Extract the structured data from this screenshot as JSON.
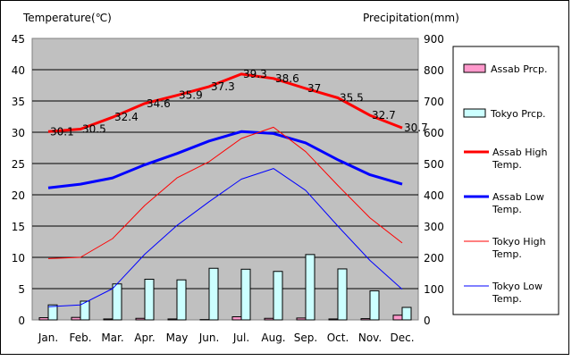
{
  "chart_data": {
    "type": "bar",
    "left_axis_label": "Temperature(℃)",
    "right_axis_label": "Precipitation(mm)",
    "categories": [
      "Jan.",
      "Feb.",
      "Mar.",
      "Apr.",
      "May",
      "Jun.",
      "Jul.",
      "Aug.",
      "Sep.",
      "Oct.",
      "Nov.",
      "Dec."
    ],
    "y_left": {
      "min": 0,
      "max": 45,
      "step": 5,
      "ticks": [
        "0",
        "5",
        "10",
        "15",
        "20",
        "25",
        "30",
        "35",
        "40",
        "45"
      ]
    },
    "y_right": {
      "min": 0,
      "max": 900,
      "step": 100,
      "ticks": [
        "0",
        "100",
        "200",
        "300",
        "400",
        "500",
        "600",
        "700",
        "800",
        "900"
      ]
    },
    "grid": true,
    "legend_position": "right",
    "bar_series": [
      {
        "name": "Assab Prcp.",
        "color": "#ff99cc",
        "values": [
          7,
          8,
          3,
          5,
          3,
          1,
          10,
          5,
          6,
          3,
          4,
          15
        ]
      },
      {
        "name": "Tokyo Prcp.",
        "color": "#ccffff",
        "values": [
          48,
          60,
          115,
          130,
          128,
          165,
          162,
          155,
          209,
          163,
          93,
          40
        ]
      }
    ],
    "line_series": [
      {
        "name": "Assab High Temp.",
        "color": "#ff0000",
        "width": 3,
        "values": [
          30.1,
          30.5,
          32.4,
          34.6,
          35.9,
          37.3,
          39.3,
          38.6,
          37.0,
          35.5,
          32.7,
          30.7
        ],
        "labels": [
          "30.1",
          "30.5",
          "32.4",
          "34.6",
          "35.9",
          "37.3",
          "39.3",
          "38.6",
          "37",
          "35.5",
          "32.7",
          "30.7"
        ]
      },
      {
        "name": "Assab Low Temp.",
        "color": "#0000ff",
        "width": 3,
        "values": [
          21.1,
          21.7,
          22.7,
          24.8,
          26.6,
          28.6,
          30.1,
          29.8,
          28.3,
          25.6,
          23.2,
          21.7
        ]
      },
      {
        "name": "Tokyo High Temp.",
        "color": "#ff0000",
        "width": 1,
        "values": [
          9.8,
          10.0,
          13.0,
          18.3,
          22.7,
          25.3,
          29.0,
          30.8,
          26.9,
          21.5,
          16.3,
          12.3
        ]
      },
      {
        "name": "Tokyo Low Temp.",
        "color": "#0000ff",
        "width": 1,
        "values": [
          2.1,
          2.4,
          5.0,
          10.5,
          15.1,
          18.9,
          22.5,
          24.2,
          20.7,
          15.0,
          9.5,
          4.9
        ]
      }
    ]
  }
}
